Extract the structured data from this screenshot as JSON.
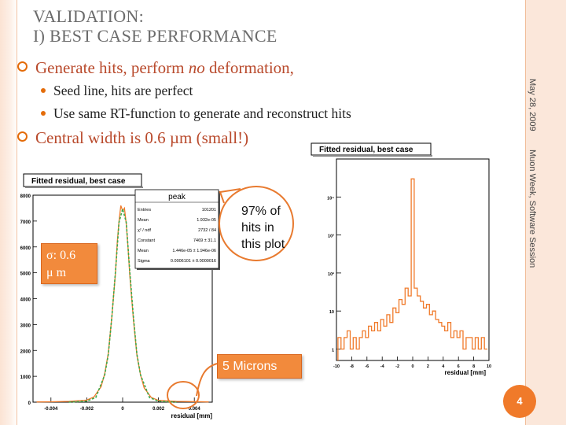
{
  "slide": {
    "title_line1": "VALIDATION:",
    "title_line2": "I) BEST CASE PERFORMANCE",
    "bullets": [
      {
        "text_before": "Generate hits, perform ",
        "text_em": "no",
        "text_after": " deformation,"
      },
      {
        "text": "Central width is 0.6 µm (small!)"
      }
    ],
    "sub_bullets": [
      "Seed line, hits are perfect",
      "Use same RT-function to generate and reconstruct hits"
    ],
    "date": "May 28, 2009",
    "event": "Muon Week, Software Session",
    "page_number": "4"
  },
  "annotations": {
    "callout": "97% of hits in this plot",
    "microns": "5 Microns",
    "sigma_line1": "σ:  0.6",
    "sigma_line2": "μ m"
  },
  "colors": {
    "accent": "#e46c0a",
    "title_gray": "#6b6b6b",
    "bullet_red": "#b94a2c",
    "hist_green": "#3ea84a",
    "hist_orange": "#f07a2a"
  },
  "chart_data": [
    {
      "type": "line",
      "title": "Fitted residual, best case",
      "xlabel": "residual [mm]",
      "ylabel": "",
      "xlim": [
        -0.005,
        0.005
      ],
      "ylim": [
        0,
        8000
      ],
      "x_ticks": [
        "-0.004",
        "-0.002",
        "0",
        "0.002",
        "0.004"
      ],
      "y_ticks": [
        "0",
        "1000",
        "2000",
        "3000",
        "4000",
        "5000",
        "6000",
        "7000",
        "8000"
      ],
      "series": [
        {
          "name": "",
          "color": "#f07a2a",
          "style": "histogram",
          "x": [
            -0.0048,
            -0.004,
            -0.003,
            -0.002,
            -0.0016,
            -0.0012,
            -0.001,
            -0.0008,
            -0.0006,
            -0.0004,
            -0.0003,
            -0.0002,
            -0.0001,
            0,
            0.0001,
            0.0002,
            0.0003,
            0.0004,
            0.0006,
            0.0008,
            0.001,
            0.0012,
            0.0016,
            0.002,
            0.003,
            0.004,
            0.0048
          ],
          "y": [
            10,
            15,
            30,
            80,
            200,
            600,
            1100,
            1900,
            3300,
            5000,
            6200,
            7000,
            7600,
            7400,
            7500,
            6900,
            6000,
            4900,
            3200,
            1800,
            1050,
            550,
            180,
            70,
            30,
            20,
            10
          ]
        },
        {
          "name": "",
          "color": "#3ea84a",
          "style": "fit",
          "x": [
            -0.003,
            -0.002,
            -0.0015,
            -0.001,
            -0.0008,
            -0.0006,
            -0.0004,
            -0.0002,
            0,
            0.0002,
            0.0004,
            0.0006,
            0.0008,
            0.001,
            0.0015,
            0.002,
            0.003
          ],
          "y": [
            0,
            40,
            180,
            1050,
            1850,
            3300,
            5050,
            6950,
            7470,
            6950,
            5050,
            3300,
            1850,
            1050,
            180,
            40,
            0
          ]
        }
      ],
      "stats_box": {
        "name": "peak",
        "rows": [
          [
            "Entries",
            "101201"
          ],
          [
            "Mean",
            "1.932e-05"
          ],
          [
            "χ² / ndf",
            "2732 / 84"
          ],
          [
            "Constant",
            "7469 ± 31.1"
          ],
          [
            "Mean",
            "1.446e-05 ± 1.946e-06"
          ],
          [
            "Sigma",
            "0.0006101 ± 0.0000016"
          ]
        ]
      }
    },
    {
      "type": "line",
      "title": "Fitted residual, best case",
      "xlabel": "residual [mm]",
      "ylabel": "",
      "xlim": [
        -10,
        10
      ],
      "log_y": true,
      "x_ticks": [
        "-10",
        "-8",
        "-6",
        "-4",
        "-2",
        "0",
        "2",
        "4",
        "6",
        "8",
        "10"
      ],
      "y_ticks": [
        "1",
        "10",
        "10²",
        "10³",
        "10⁴"
      ],
      "series": [
        {
          "name": "",
          "color": "#f07a2a",
          "style": "histogram",
          "x": [
            -9.6,
            -9.2,
            -8.8,
            -8.4,
            -8.0,
            -7.6,
            -7.2,
            -6.8,
            -6.4,
            -6.0,
            -5.6,
            -5.2,
            -4.8,
            -4.4,
            -4.0,
            -3.6,
            -3.2,
            -2.8,
            -2.4,
            -2.0,
            -1.6,
            -1.2,
            -0.8,
            -0.4,
            0,
            0.4,
            0.8,
            1.2,
            1.6,
            2.0,
            2.4,
            2.8,
            3.2,
            3.6,
            4.0,
            4.4,
            4.8,
            5.2,
            5.6,
            6.0,
            6.4,
            6.8,
            7.2,
            7.6,
            8.0,
            8.4,
            8.8,
            9.2,
            9.6
          ],
          "y": [
            2,
            1,
            2,
            3,
            1,
            2,
            1,
            2,
            3,
            2,
            4,
            3,
            5,
            3,
            6,
            4,
            8,
            5,
            12,
            9,
            20,
            15,
            40,
            25,
            30000,
            40,
            25,
            18,
            12,
            15,
            8,
            10,
            6,
            5,
            4,
            3,
            5,
            2,
            3,
            2,
            3,
            1,
            2,
            2,
            1,
            2,
            1,
            2,
            1
          ]
        }
      ]
    }
  ]
}
